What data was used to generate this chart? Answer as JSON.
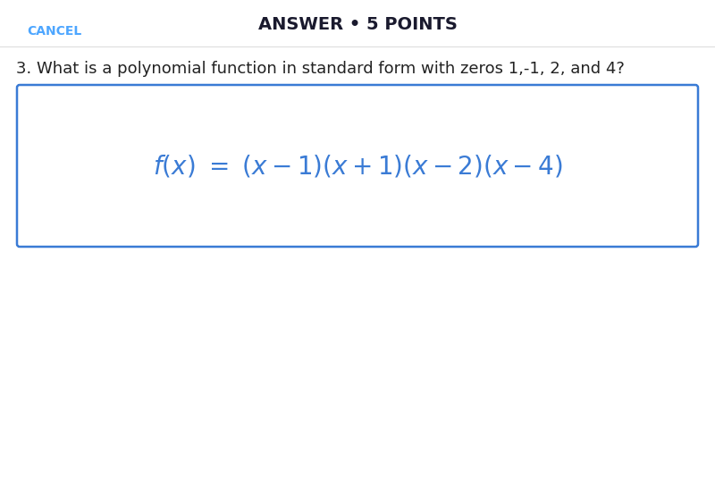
{
  "background_color": "#ffffff",
  "header_text": "ANSWER • 5 POINTS",
  "cancel_text": "CANCEL",
  "cancel_color": "#4da6ff",
  "header_color": "#1a1a2e",
  "question_text": "3. What is a polynomial function in standard form with zeros 1,-1, 2, and 4?",
  "question_color": "#222222",
  "formula_color": "#3a7bd5",
  "box_edge_color": "#3a7bd5",
  "box_face_color": "#ffffff",
  "fig_width": 8.0,
  "fig_height": 5.56,
  "dpi": 100
}
